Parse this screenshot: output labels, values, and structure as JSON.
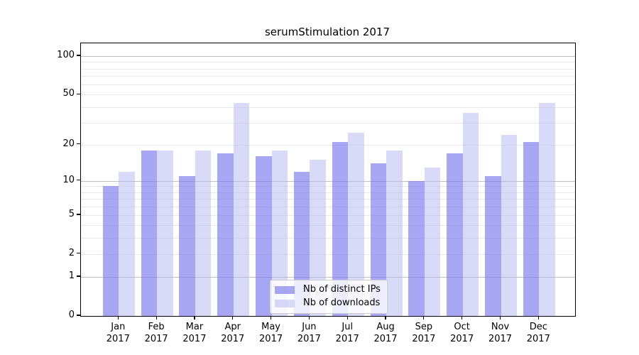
{
  "chart_data": {
    "type": "bar",
    "title": "serumStimulation 2017",
    "x_categories": [
      "Jan",
      "Feb",
      "Mar",
      "Apr",
      "May",
      "Jun",
      "Jul",
      "Aug",
      "Sep",
      "Oct",
      "Nov",
      "Dec"
    ],
    "x_year_label": "2017",
    "series": [
      {
        "name": "Nb of distinct IPs",
        "color": "#7878ee",
        "alpha": 0.65,
        "values": [
          9,
          18,
          11,
          17,
          16,
          12,
          21,
          14,
          10,
          17,
          11,
          21
        ]
      },
      {
        "name": "Nb of downloads",
        "color": "#b7b7f2",
        "alpha": 0.52,
        "values": [
          12,
          18,
          18,
          43,
          18,
          15,
          25,
          18,
          13,
          36,
          24,
          43
        ]
      }
    ],
    "y_axis": {
      "scale": "log1p",
      "tick_labels": [
        0,
        1,
        2,
        5,
        10,
        20,
        50,
        100
      ],
      "major_gridlines": [
        1,
        10,
        100
      ],
      "minor_gridlines": [
        2,
        3,
        4,
        5,
        6,
        7,
        8,
        9,
        20,
        30,
        40,
        50,
        60,
        70,
        80,
        90
      ],
      "ylim": [
        0,
        126
      ]
    },
    "legend": {
      "position": "lower center",
      "entries": [
        "Nb of distinct IPs",
        "Nb of downloads"
      ]
    },
    "colors": {
      "grid_major": "#bfbfbf",
      "grid_minor": "#e8e8e8",
      "axis": "#000000",
      "background": "#ffffff",
      "legend_border": "#cccccc"
    }
  }
}
